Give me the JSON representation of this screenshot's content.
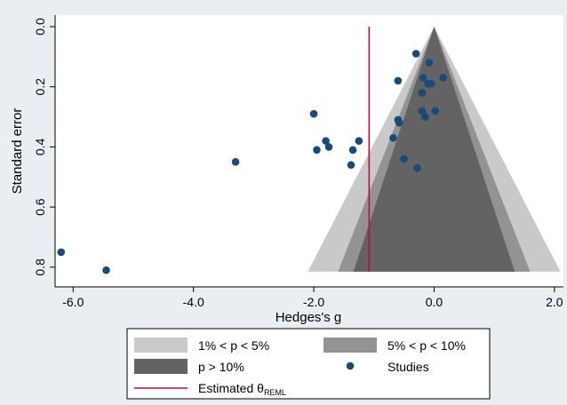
{
  "chart_data": {
    "type": "scatter",
    "title": "",
    "xlabel": "Hedges's g",
    "ylabel": "Standard error",
    "xlim": [
      -6.3,
      2.15
    ],
    "ylim": [
      0.0,
      0.83
    ],
    "y_reversed": true,
    "x_ticks": [
      "-6.0",
      "-4.0",
      "-2.0",
      "0.0",
      "2.0"
    ],
    "x_tick_values": [
      -6,
      -4,
      -2,
      0,
      2
    ],
    "y_ticks": [
      "0.0",
      "0.2",
      "0.4",
      "0.6",
      "0.8"
    ],
    "y_tick_values": [
      0,
      0.2,
      0.4,
      0.6,
      0.8
    ],
    "grid": false,
    "legend_position": "bottom",
    "estimated_theta": -1.08,
    "funnel_center": 0.0,
    "funnel_max_se": 0.815,
    "contour_regions": [
      {
        "label": "1% < p < 5%",
        "z_outer": 2.576,
        "color": "#c9c9c9"
      },
      {
        "label": "5% < p < 10%",
        "z_outer": 1.96,
        "color": "#939393"
      },
      {
        "label": "p > 10%",
        "z_outer": 1.645,
        "color": "#636363"
      }
    ],
    "series": [
      {
        "name": "Studies",
        "color": "#1a4a78",
        "points": [
          {
            "x": -0.3,
            "y": 0.09
          },
          {
            "x": -0.08,
            "y": 0.12
          },
          {
            "x": -0.18,
            "y": 0.17
          },
          {
            "x": 0.15,
            "y": 0.17
          },
          {
            "x": -0.6,
            "y": 0.18
          },
          {
            "x": -0.1,
            "y": 0.19
          },
          {
            "x": -0.05,
            "y": 0.19
          },
          {
            "x": -0.2,
            "y": 0.22
          },
          {
            "x": 0.02,
            "y": 0.28
          },
          {
            "x": -0.2,
            "y": 0.28
          },
          {
            "x": -0.15,
            "y": 0.3
          },
          {
            "x": -2.0,
            "y": 0.29
          },
          {
            "x": -0.6,
            "y": 0.31
          },
          {
            "x": -0.58,
            "y": 0.32
          },
          {
            "x": -0.68,
            "y": 0.37
          },
          {
            "x": -1.25,
            "y": 0.38
          },
          {
            "x": -1.8,
            "y": 0.38
          },
          {
            "x": -1.75,
            "y": 0.4
          },
          {
            "x": -1.95,
            "y": 0.41
          },
          {
            "x": -1.35,
            "y": 0.41
          },
          {
            "x": -0.5,
            "y": 0.44
          },
          {
            "x": -3.3,
            "y": 0.45
          },
          {
            "x": -1.38,
            "y": 0.46
          },
          {
            "x": -0.28,
            "y": 0.47
          },
          {
            "x": -6.2,
            "y": 0.75
          },
          {
            "x": -5.45,
            "y": 0.81
          }
        ]
      }
    ],
    "legend": {
      "items": [
        {
          "kind": "swatch",
          "label": "1% < p < 5%",
          "color": "#c9c9c9"
        },
        {
          "kind": "swatch",
          "label": "5% < p < 10%",
          "color": "#939393"
        },
        {
          "kind": "swatch",
          "label": "p > 10%",
          "color": "#636363"
        },
        {
          "kind": "marker",
          "label": "Studies",
          "color": "#1a4a78"
        },
        {
          "kind": "line",
          "label": "Estimated θ",
          "label_sub": "REML",
          "color": "#b0123d"
        }
      ]
    }
  }
}
